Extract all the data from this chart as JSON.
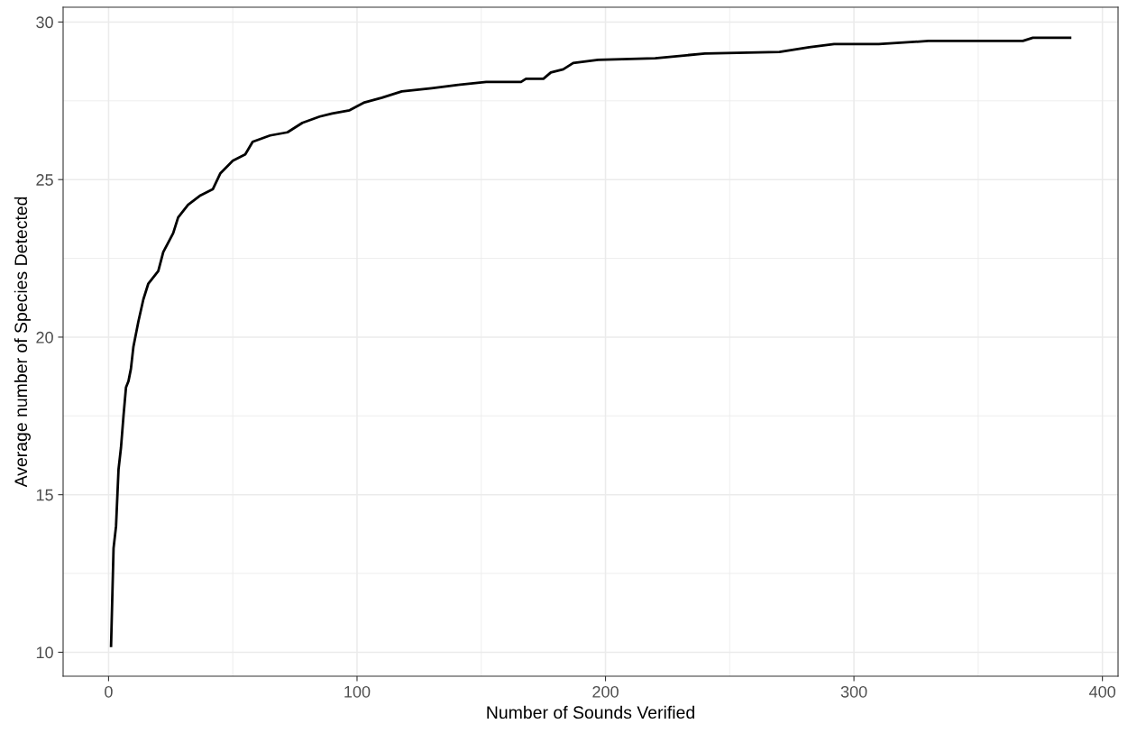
{
  "chart_data": {
    "type": "line",
    "xlabel": "Number of Sounds Verified",
    "ylabel": "Average number of Species Detected",
    "x": [
      1,
      2,
      3,
      4,
      5,
      6,
      7,
      8,
      9,
      10,
      12,
      14,
      16,
      20,
      22,
      26,
      28,
      32,
      37,
      42,
      45,
      50,
      55,
      58,
      65,
      72,
      78,
      85,
      90,
      97,
      103,
      110,
      118,
      130,
      140,
      152,
      166,
      168,
      175,
      178,
      183,
      187,
      197,
      220,
      240,
      270,
      282,
      292,
      310,
      330,
      368,
      372,
      387
    ],
    "series": [
      {
        "color": "#000000",
        "values": [
          10.2,
          13.3,
          14.0,
          15.8,
          16.5,
          17.5,
          18.4,
          18.6,
          19.0,
          19.7,
          20.5,
          21.2,
          21.7,
          22.1,
          22.7,
          23.3,
          23.8,
          24.2,
          24.5,
          24.7,
          25.2,
          25.6,
          25.8,
          26.2,
          26.4,
          26.5,
          26.8,
          27.0,
          27.1,
          27.2,
          27.45,
          27.6,
          27.8,
          27.9,
          28.0,
          28.1,
          28.1,
          28.2,
          28.2,
          28.4,
          28.5,
          28.7,
          28.8,
          28.85,
          29.0,
          29.05,
          29.2,
          29.3,
          29.3,
          29.4,
          29.4,
          29.5,
          29.5
        ]
      }
    ],
    "xlim": [
      -18.3,
      406.3
    ],
    "ylim": [
      9.24,
      30.47
    ],
    "xticks": [
      0,
      100,
      200,
      300,
      400
    ],
    "yticks": [
      10,
      15,
      20,
      25,
      30
    ],
    "grid": true,
    "marker": "none",
    "line_style": "solid",
    "legend": false
  }
}
